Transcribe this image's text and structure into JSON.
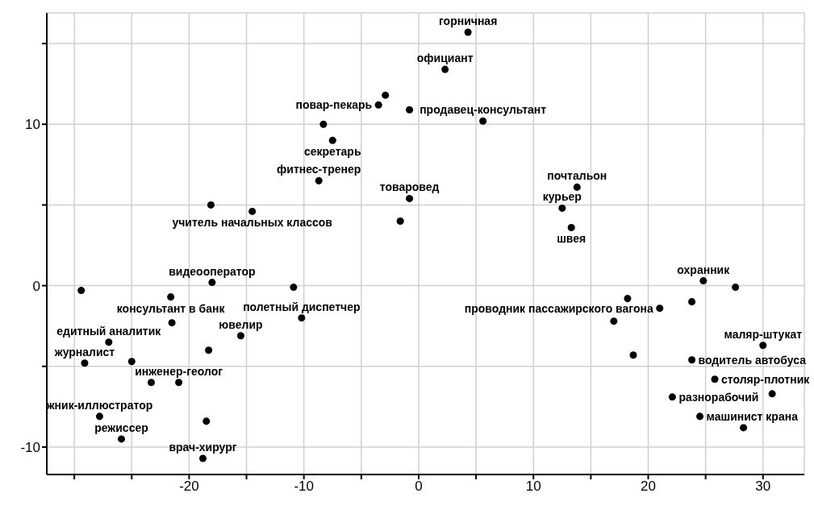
{
  "chart_data": {
    "type": "scatter",
    "marker": "circle",
    "grid": true,
    "xlim": [
      -32.4,
      33.6
    ],
    "ylim": [
      -11.7,
      16.9
    ],
    "xticks": [
      {
        "value": -30,
        "label": null
      },
      {
        "value": -25,
        "label": null
      },
      -20,
      {
        "value": -15,
        "label": null
      },
      -10,
      {
        "value": -5,
        "label": null
      },
      0,
      {
        "value": 5,
        "label": null
      },
      10,
      {
        "value": 15,
        "label": null
      },
      20,
      {
        "value": 25,
        "label": null
      },
      30
    ],
    "yticks": [
      -10,
      {
        "value": -5,
        "label": null
      },
      0,
      {
        "value": 5,
        "label": null
      },
      10,
      {
        "value": 15,
        "label": null
      }
    ],
    "series": [
      {
        "color": "#000000",
        "x": [
          -2.9,
          -3.5,
          -0.8,
          5.6,
          -8.3,
          -7.5,
          -8.7,
          -0.8,
          -1.6,
          -18.1,
          -14.5,
          4.3,
          2.3,
          13.8,
          12.5,
          13.3,
          -29.4,
          -18.0,
          -21.6,
          -10.9,
          -21.5,
          -10.2,
          -15.5,
          -27.0,
          -18.3,
          -29.1,
          -25.0,
          -23.3,
          -20.9,
          -27.8,
          -18.5,
          -25.9,
          -18.8,
          24.8,
          27.6,
          18.2,
          23.8,
          21.0,
          17.0,
          30.0,
          23.8,
          18.7,
          25.8,
          30.8,
          22.1,
          24.5,
          28.3
        ],
        "values": [
          11.8,
          11.2,
          10.9,
          10.2,
          10.0,
          9.0,
          6.5,
          5.4,
          4.0,
          5.0,
          4.6,
          15.7,
          13.4,
          6.1,
          4.8,
          3.6,
          -0.3,
          0.2,
          -0.7,
          -0.1,
          -2.3,
          -2.0,
          -3.1,
          -3.5,
          -4.0,
          -4.8,
          -4.7,
          -6.0,
          -6.0,
          -8.1,
          -8.4,
          -9.5,
          -10.7,
          0.3,
          -0.1,
          -0.8,
          -1.0,
          -1.4,
          -2.2,
          -3.7,
          -4.6,
          -4.3,
          -5.8,
          -6.7,
          -6.9,
          -8.1,
          -8.8
        ]
      }
    ],
    "annotations": [
      {
        "text": "горничная",
        "x": 4.3,
        "y": 15.7
      },
      {
        "text": "официант",
        "x": 2.3,
        "y": 13.4
      },
      {
        "text": "повар-пекарь",
        "x": -3.5,
        "y": 11.2
      },
      {
        "text": "продавец-консультант",
        "x": 5.6,
        "y": 10.2
      },
      {
        "text": "секретарь",
        "x": -7.5,
        "y": 9.0
      },
      {
        "text": "фитнес-тренер",
        "x": -8.7,
        "y": 6.5
      },
      {
        "text": "товаровед",
        "x": -0.8,
        "y": 5.4
      },
      {
        "text": "учитель начальных классов",
        "x": -14.5,
        "y": 4.6
      },
      {
        "text": "почтальон",
        "x": 13.8,
        "y": 6.1
      },
      {
        "text": "курьер",
        "x": 12.5,
        "y": 4.8
      },
      {
        "text": "швея",
        "x": 13.3,
        "y": 3.6
      },
      {
        "text": "видеооператор",
        "x": -18.0,
        "y": 0.2
      },
      {
        "text": "консультант в банк",
        "x": -21.6,
        "y": -0.7
      },
      {
        "text": "полетный диспетчер",
        "x": -10.2,
        "y": -2.0
      },
      {
        "text": "ювелир",
        "x": -15.5,
        "y": -3.1
      },
      {
        "text": "едитный аналитик",
        "x": -27.0,
        "y": -3.5
      },
      {
        "text": "журналист",
        "x": -29.1,
        "y": -4.8
      },
      {
        "text": "инженер-геолог",
        "x": -20.9,
        "y": -6.0
      },
      {
        "text": "жник-иллюстратор",
        "x": -27.8,
        "y": -8.1
      },
      {
        "text": "режиссер",
        "x": -25.9,
        "y": -9.5
      },
      {
        "text": "врач-хирург",
        "x": -18.8,
        "y": -10.7
      },
      {
        "text": "охранник",
        "x": 24.8,
        "y": 0.3
      },
      {
        "text": "проводник пассажирского вагона",
        "x": 21.0,
        "y": -1.4
      },
      {
        "text": "маляр-штукат",
        "x": 30.0,
        "y": -3.7
      },
      {
        "text": "водитель автобуса",
        "x": 23.8,
        "y": -4.6
      },
      {
        "text": "столяр-плотник",
        "x": 25.8,
        "y": -5.8
      },
      {
        "text": "разнорабочий",
        "x": 22.1,
        "y": -6.9
      },
      {
        "text": "машинист крана",
        "x": 24.5,
        "y": -8.1
      }
    ]
  }
}
